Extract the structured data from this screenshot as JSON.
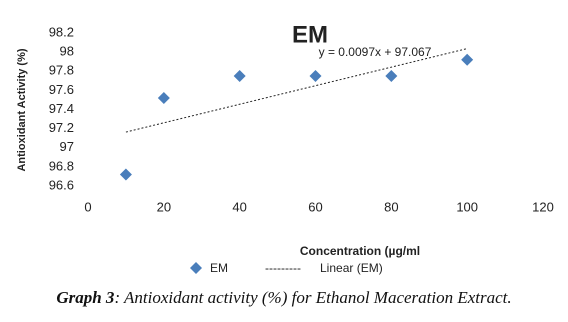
{
  "chart_data": {
    "type": "scatter",
    "title": "EM",
    "x_label": "Concentration (µg/ml",
    "y_label": "Antioxidant Activity (%)",
    "series": [
      {
        "name": "EM",
        "color": "#4a7ebb",
        "x": [
          10,
          20,
          40,
          60,
          80,
          100
        ],
        "values": [
          96.72,
          97.52,
          97.75,
          97.75,
          97.75,
          97.92
        ]
      }
    ],
    "trendline": {
      "name": "Linear (EM)",
      "slope": 0.0097,
      "intercept": 97.067,
      "equation": "y = 0.0097x + 97.067",
      "legend_dash": "---------"
    },
    "xlim": [
      0,
      120
    ],
    "xticks": [
      0,
      20,
      40,
      60,
      80,
      100,
      120
    ],
    "ylim": [
      96.6,
      98.2
    ],
    "yticks": [
      96.6,
      96.8,
      97,
      97.2,
      97.4,
      97.6,
      97.8,
      98,
      98.2
    ],
    "grid": false
  },
  "caption": {
    "label": "Graph 3",
    "text": ": Antioxidant activity (%) for Ethanol Maceration Extract."
  }
}
